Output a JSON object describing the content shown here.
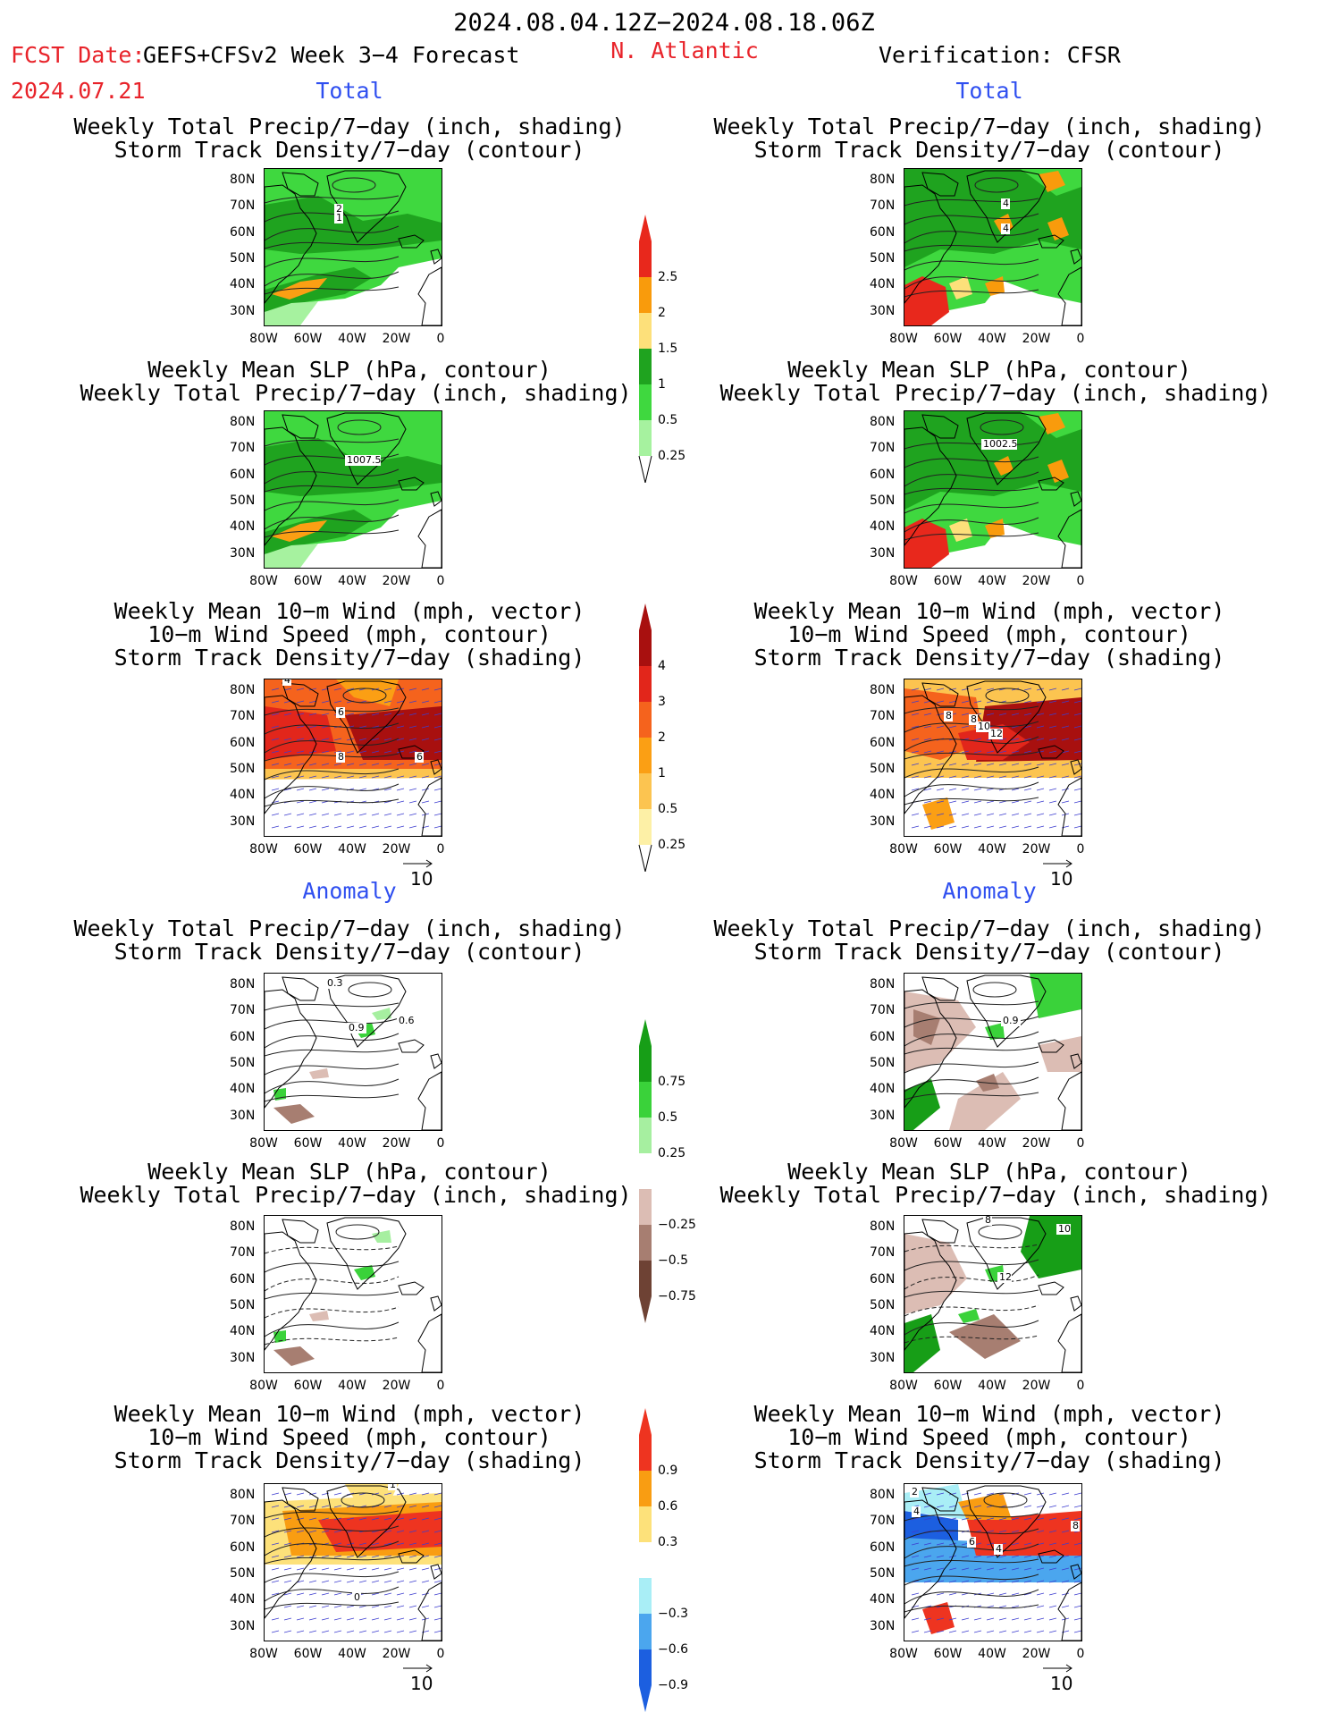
{
  "header": {
    "date_range": "2024.08.04.12Z−2024.08.18.06Z",
    "fcst_label": "FCST Date:",
    "forecast_title": "GEFS+CFSv2 Week 3−4 Forecast",
    "fcst_date": "2024.07.21",
    "region": "N. Atlantic",
    "verification": "Verification: CFSR"
  },
  "sections": {
    "total": "Total",
    "anomaly": "Anomaly"
  },
  "panel_titles": {
    "precip_storm": [
      "Weekly Total Precip/7−day (inch, shading)",
      "Storm Track Density/7−day (contour)"
    ],
    "slp_precip": [
      "Weekly Mean SLP (hPa, contour)",
      "Weekly Total Precip/7−day (inch, shading)"
    ],
    "wind_storm": [
      "Weekly Mean 10−m Wind (mph, vector)",
      "10−m Wind Speed (mph, contour)",
      "Storm Track Density/7−day (shading)"
    ]
  },
  "axes": {
    "lat_ticks": [
      "80N",
      "70N",
      "60N",
      "50N",
      "40N",
      "30N"
    ],
    "lon_ticks": [
      "80W",
      "60W",
      "40W",
      "20W",
      "0"
    ]
  },
  "colorbars": {
    "precip_total": {
      "labels": [
        "2.5",
        "2",
        "1.5",
        "1",
        "0.5",
        "0.25"
      ],
      "colors": [
        "#e8281c",
        "#f99b0c",
        "#fde07a",
        "#1fa31f",
        "#3fd83f",
        "#a6f29f"
      ]
    },
    "storm_total": {
      "labels": [
        "4",
        "3",
        "2",
        "1",
        "0.5",
        "0.25"
      ],
      "colors": [
        "#a8100f",
        "#e2261b",
        "#f5631d",
        "#fb9f14",
        "#fcc450",
        "#fdf0a6"
      ]
    },
    "precip_anom": {
      "labels": [
        "0.75",
        "0.5",
        "0.25",
        "−0.25",
        "−0.5",
        "−0.75"
      ],
      "colors": [
        "#179e17",
        "#3ad23a",
        "#a6efa0",
        "#ffffff",
        "#dcbdb4",
        "#a77e71",
        "#6e4234"
      ]
    },
    "storm_anom": {
      "labels": [
        "0.9",
        "0.6",
        "0.3",
        "−0.3",
        "−0.6",
        "−0.9"
      ],
      "colors": [
        "#ee3420",
        "#f99d12",
        "#fde17a",
        "#ffffff",
        "#a9eef6",
        "#4ba6ee",
        "#1c5fe0"
      ]
    }
  },
  "contour_labels": {
    "p1": [
      "2",
      "1"
    ],
    "p2": [
      "4",
      "4"
    ],
    "p3": [
      "1007.5"
    ],
    "p4": [
      "1002.5"
    ],
    "p5": [
      "4",
      "6",
      "8",
      "6"
    ],
    "p6": [
      "8",
      "8",
      "10",
      "12"
    ],
    "p7": [
      "0.3",
      "0.9",
      "0.6"
    ],
    "p8": [
      "0.9"
    ],
    "p10": [
      "8",
      "10",
      "12"
    ],
    "p11": [
      "1",
      "0"
    ],
    "p12": [
      "2",
      "4",
      "6",
      "4",
      "8"
    ]
  },
  "vector_ref": "10"
}
